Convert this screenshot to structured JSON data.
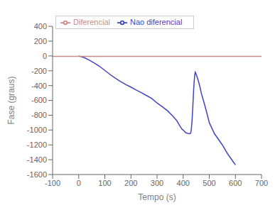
{
  "chart_data": {
    "type": "line",
    "xlabel": "Tempo (s)",
    "ylabel": "Fase (graus)",
    "xlim": [
      -100,
      700
    ],
    "ylim": [
      -1600,
      400
    ],
    "xticks": [
      -100,
      0,
      100,
      200,
      300,
      400,
      500,
      600,
      700
    ],
    "yticks": [
      -1600,
      -1400,
      -1200,
      -1000,
      -800,
      -600,
      -400,
      -200,
      0,
      200,
      400
    ],
    "grid": false,
    "legend": "upper left",
    "series": [
      {
        "name": "Nao diferencial",
        "color": "#4444bb",
        "x": [
          0,
          20,
          40,
          60,
          80,
          100,
          120,
          140,
          160,
          180,
          200,
          220,
          240,
          260,
          280,
          300,
          320,
          340,
          360,
          370,
          375,
          380,
          385,
          390,
          395,
          400,
          410,
          420,
          425,
          428,
          430,
          432,
          434,
          436,
          438,
          440,
          442,
          444,
          446,
          448,
          450,
          455,
          460,
          465,
          470,
          480,
          490,
          500,
          520,
          550,
          570,
          590,
          600
        ],
        "values": [
          0,
          -20,
          -55,
          -95,
          -140,
          -195,
          -250,
          -300,
          -345,
          -385,
          -420,
          -460,
          -495,
          -535,
          -575,
          -635,
          -685,
          -740,
          -810,
          -850,
          -870,
          -900,
          -930,
          -960,
          -985,
          -1000,
          -1035,
          -1048,
          -1050,
          -1045,
          -1020,
          -960,
          -870,
          -750,
          -610,
          -460,
          -350,
          -270,
          -220,
          -230,
          -250,
          -300,
          -360,
          -430,
          -510,
          -630,
          -760,
          -900,
          -1050,
          -1200,
          -1320,
          -1420,
          -1470
        ]
      },
      {
        "name": "Diferencial",
        "color": "#cc8888",
        "x": [
          -100,
          700
        ],
        "values": [
          -5,
          -5
        ]
      }
    ]
  }
}
